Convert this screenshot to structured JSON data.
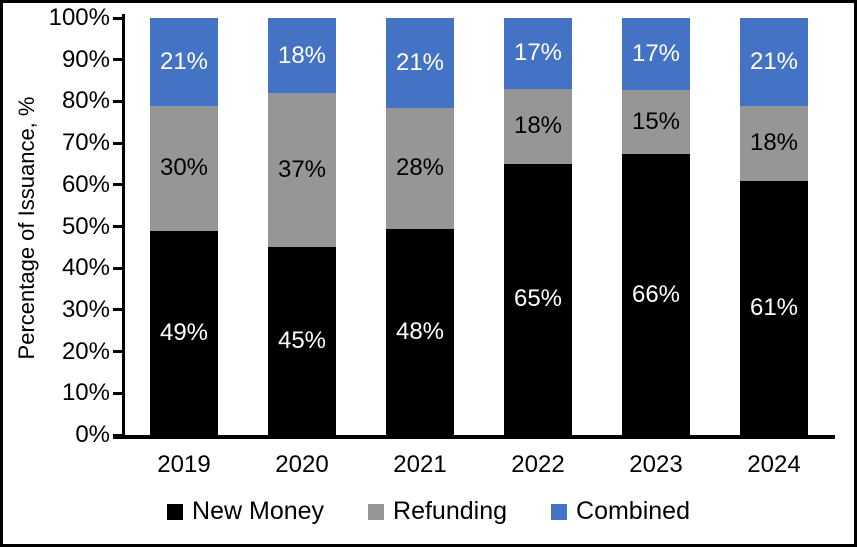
{
  "chart_data": {
    "type": "bar",
    "variant": "stacked-100-percent-column",
    "title": "",
    "xlabel": "",
    "ylabel": "Percentage of Issuance, %",
    "categories": [
      "2019",
      "2020",
      "2021",
      "2022",
      "2023",
      "2024"
    ],
    "series": [
      {
        "name": "New Money",
        "color": "#000000",
        "label_color": "#ffffff",
        "values": [
          49,
          45,
          48,
          65,
          66,
          61
        ]
      },
      {
        "name": "Refunding",
        "color": "#969696",
        "label_color": "#000000",
        "values": [
          30,
          37,
          28,
          18,
          15,
          18
        ]
      },
      {
        "name": "Combined",
        "color": "#4472C4",
        "label_color": "#ffffff",
        "values": [
          21,
          18,
          21,
          17,
          17,
          21
        ]
      }
    ],
    "data_label_suffix": "%",
    "y_axis": {
      "min": 0,
      "max": 100,
      "ticks": [
        "0%",
        "10%",
        "20%",
        "30%",
        "40%",
        "50%",
        "60%",
        "70%",
        "80%",
        "90%",
        "100%"
      ]
    },
    "grid": false,
    "legend": {
      "position": "bottom",
      "entries": [
        "New Money",
        "Refunding",
        "Combined"
      ]
    }
  },
  "colors": {
    "background": "#ffffff",
    "frame_border": "#000000",
    "axis": "#000000"
  }
}
